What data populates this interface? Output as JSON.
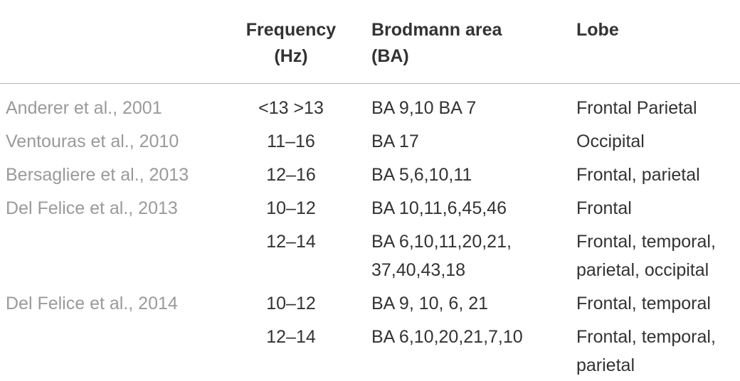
{
  "table": {
    "header": [
      "Frequency\n(Hz)",
      "Brodmann area\n(BA)",
      "Lobe"
    ],
    "rows": [
      {
        "study": "Anderer et al., 2001",
        "frequency": "<13 >13",
        "area": "BA 9,10 BA 7",
        "lobe": "Frontal Parietal"
      },
      {
        "study": "Ventouras et al., 2010",
        "frequency": "11–16",
        "area": "BA 17",
        "lobe": "Occipital"
      },
      {
        "study": "Bersagliere et al., 2013",
        "frequency": "12–16",
        "area": "BA 5,6,10,11",
        "lobe": "Frontal, parietal"
      },
      {
        "study": "Del Felice et al., 2013",
        "frequency": "10–12",
        "area": "BA 10,11,6,45,46",
        "lobe": "Frontal"
      },
      {
        "frequency": "12–14",
        "area": "BA 6,10,11,20,21,\n37,40,43,18",
        "lobe": "Frontal, temporal,\nparietal, occipital"
      },
      {
        "study": "Del Felice et al., 2014",
        "frequency": "10–12",
        "area": "BA 9, 10, 6, 21",
        "lobe": "Frontal, temporal"
      },
      {
        "frequency": "12–14",
        "area": "BA 6,10,20,21,7,10",
        "lobe": "Frontal, temporal,\nparietal"
      }
    ]
  }
}
